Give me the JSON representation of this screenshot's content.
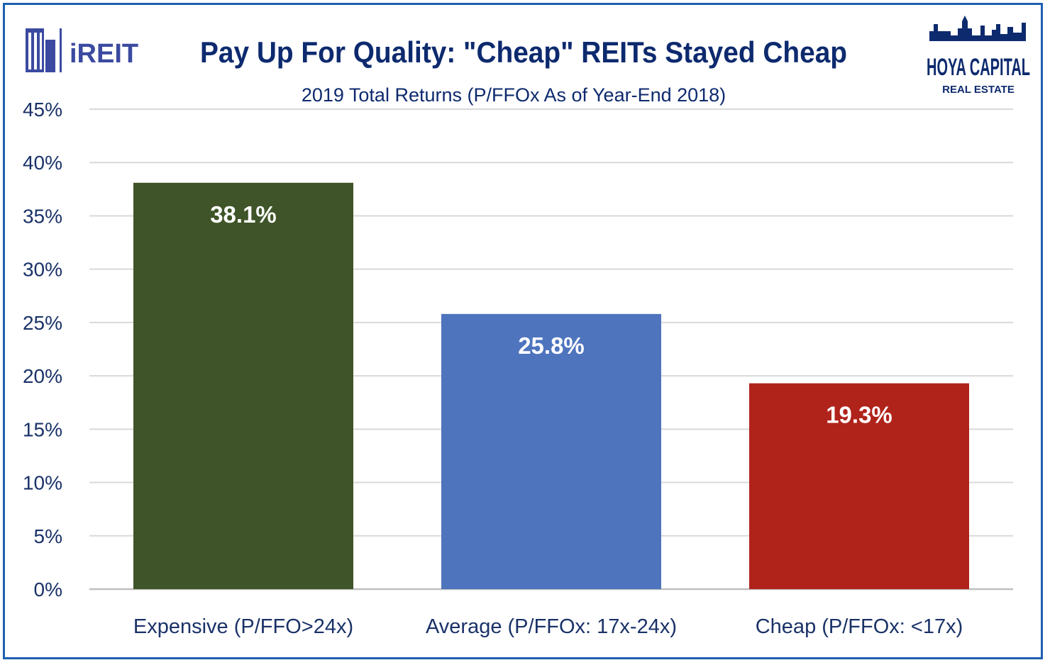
{
  "logos": {
    "left_text": "iREIT",
    "right_line1": "HOYA CAPITAL",
    "right_line2": "REAL ESTATE"
  },
  "chart_data": {
    "type": "bar",
    "title": "Pay Up For Quality: \"Cheap\" REITs Stayed Cheap",
    "subtitle": "2019 Total Returns  (P/FFOx As of Year-End 2018)",
    "categories": [
      "Expensive (P/FFO>24x)",
      "Average (P/FFOx: 17x-24x)",
      "Cheap (P/FFOx: <17x)"
    ],
    "values": [
      38.1,
      25.8,
      19.3
    ],
    "data_labels": [
      "38.1%",
      "25.8%",
      "19.3%"
    ],
    "colors": [
      "#3f5428",
      "#4e74be",
      "#b0231b"
    ],
    "ylim": [
      0,
      45
    ],
    "yticks": [
      0,
      5,
      10,
      15,
      20,
      25,
      30,
      35,
      40,
      45
    ],
    "ytick_labels": [
      "0%",
      "5%",
      "10%",
      "15%",
      "20%",
      "25%",
      "30%",
      "35%",
      "40%",
      "45%"
    ],
    "grid": true,
    "legend": "none",
    "gridline_color": "#d9d9d9"
  }
}
